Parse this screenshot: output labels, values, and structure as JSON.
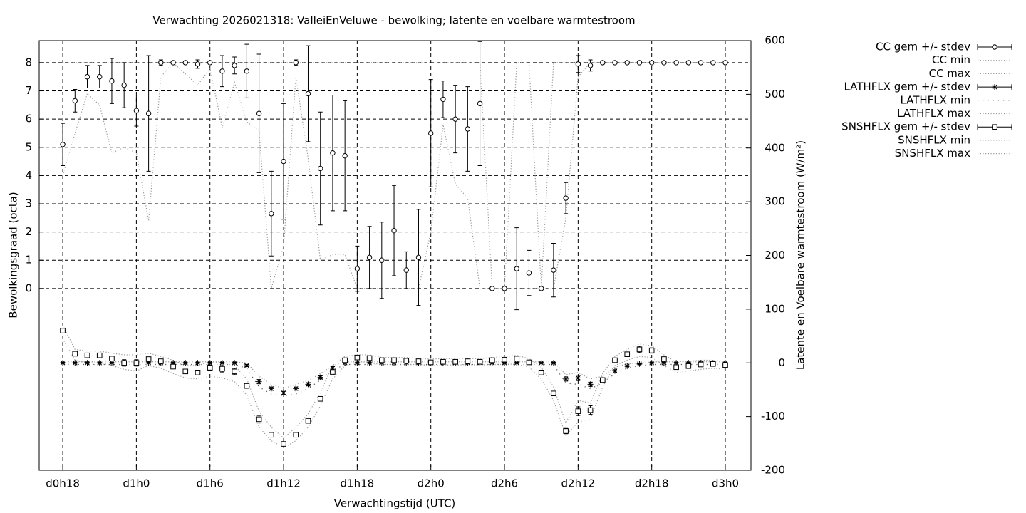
{
  "chart_data": {
    "type": "line",
    "title": "Verwachting 2026021318: ValleiEnVeluwe - bewolking; latente en voelbare warmtestroom",
    "x_label": "Verwachtingstijd (UTC)",
    "y_label": "Bewolkingsgraad (octa)",
    "y2_label": "Latente en Voelbare warmtestroom (W/m²)",
    "x": [
      18,
      19,
      20,
      21,
      22,
      23,
      24,
      25,
      26,
      27,
      28,
      29,
      30,
      31,
      32,
      33,
      34,
      35,
      36,
      37,
      38,
      39,
      40,
      41,
      42,
      43,
      44,
      45,
      46,
      47,
      48,
      49,
      50,
      51,
      52,
      53,
      54,
      55,
      56,
      57,
      58,
      59,
      60,
      61,
      62,
      63,
      64,
      65,
      66,
      67,
      68,
      69,
      70,
      71,
      72
    ],
    "xlim": [
      16.08,
      74.09
    ],
    "xticks": [
      {
        "value": 18,
        "label": "d0h18"
      },
      {
        "value": 24,
        "label": "d1h0"
      },
      {
        "value": 30,
        "label": "d1h6"
      },
      {
        "value": 36,
        "label": "d1h12"
      },
      {
        "value": 42,
        "label": "d1h18"
      },
      {
        "value": 48,
        "label": "d2h0"
      },
      {
        "value": 54,
        "label": "d2h6"
      },
      {
        "value": 60,
        "label": "d2h12"
      },
      {
        "value": 66,
        "label": "d2h18"
      },
      {
        "value": 72,
        "label": "d3h0"
      }
    ],
    "ylim": [
      -6.44,
      8.78
    ],
    "yticks": [
      0,
      1,
      2,
      3,
      4,
      5,
      6,
      7,
      8
    ],
    "y2lim": [
      -200,
      600
    ],
    "y2ticks": [
      -200,
      -100,
      0,
      100,
      200,
      300,
      400,
      500,
      600
    ],
    "grid": true,
    "legend": "outside-right-top",
    "series": [
      {
        "name": "CC gem +/- stdev",
        "color": "#000000",
        "style": "errorbar",
        "marker": "circle",
        "axis": "y",
        "values": [
          5.1,
          6.65,
          7.5,
          7.5,
          7.35,
          7.2,
          6.3,
          6.2,
          8,
          8,
          8,
          7.95,
          8,
          7.7,
          7.9,
          7.7,
          6.2,
          2.65,
          4.5,
          8,
          6.9,
          4.25,
          4.8,
          4.7,
          0.7,
          1.1,
          1.0,
          2.05,
          0.65,
          1.1,
          5.5,
          6.7,
          6.0,
          5.65,
          6.55,
          0,
          0,
          0.7,
          0.55,
          0,
          0.65,
          3.2,
          7.95,
          7.9,
          8,
          8,
          8,
          8,
          8,
          8,
          8,
          8,
          8,
          8,
          8
        ],
        "errors": [
          0.75,
          0.4,
          0.4,
          0.4,
          0.8,
          0.8,
          0.55,
          2.05,
          0.1,
          0,
          0,
          0.15,
          0,
          0.55,
          0.3,
          0.95,
          2.1,
          1.5,
          2.05,
          0.1,
          1.7,
          2.0,
          2.05,
          1.95,
          0.8,
          1.1,
          1.35,
          1.6,
          0.65,
          1.7,
          1.9,
          0.65,
          1.2,
          1.5,
          2.2,
          0,
          0,
          1.45,
          0.8,
          0,
          0.95,
          0.55,
          0.3,
          0.2,
          0,
          0,
          0,
          0,
          0,
          0,
          0,
          0,
          0,
          0,
          0
        ]
      },
      {
        "name": "CC min",
        "color": "#999999",
        "style": "dotted",
        "axis": "y",
        "values": [
          4.0,
          5.5,
          6.9,
          6.5,
          4.8,
          5.0,
          4.8,
          2.4,
          7.5,
          8,
          7.6,
          7.2,
          7.8,
          5.7,
          7.3,
          5.9,
          5.6,
          0,
          1.5,
          7.5,
          4.6,
          1,
          1.2,
          1.2,
          0,
          0,
          0,
          0,
          0,
          0,
          2,
          5.8,
          3.7,
          3.2,
          0,
          0,
          0,
          0,
          0,
          0,
          0,
          2.5,
          7.5,
          8,
          8,
          8,
          8,
          8,
          8,
          8,
          8,
          8,
          8,
          8,
          8
        ]
      },
      {
        "name": "CC max",
        "color": "#999999",
        "style": "dotted",
        "axis": "y",
        "values": [
          8,
          8,
          8,
          8,
          8,
          8,
          8,
          8,
          8,
          8,
          8,
          8,
          8,
          8,
          8,
          8,
          8,
          8,
          8,
          8,
          8,
          8,
          8,
          8,
          8,
          8,
          8,
          8,
          8,
          8,
          8,
          8,
          8,
          8,
          8,
          0,
          0,
          8,
          8,
          0,
          8,
          8,
          8,
          8,
          8,
          8,
          8,
          8,
          8,
          8,
          8,
          8,
          8,
          8,
          8
        ]
      },
      {
        "name": "LATHFLX gem +/- stdev",
        "color": "#000000",
        "style": "errorbar",
        "marker": "star",
        "axis": "y2",
        "values": [
          0,
          0,
          0,
          0,
          0,
          0,
          0,
          0,
          0,
          0,
          0,
          0,
          0,
          0,
          0,
          -5,
          -35,
          -48,
          -56,
          -48,
          -40,
          -27,
          -10,
          0,
          0,
          0,
          0,
          0,
          0,
          0,
          0,
          0,
          0,
          0,
          0,
          0,
          0,
          0,
          0,
          0,
          0,
          -30,
          -28,
          -40,
          -32,
          -15,
          -6,
          -2,
          0,
          0,
          0,
          0,
          0,
          0,
          0
        ],
        "errors": [
          1,
          1,
          1,
          1,
          1,
          1,
          1,
          1,
          1,
          1,
          1,
          1,
          1,
          1,
          1,
          2,
          4,
          3,
          3,
          3,
          3,
          3,
          3,
          1,
          1,
          1,
          1,
          1,
          1,
          1,
          1,
          1,
          1,
          1,
          1,
          1,
          1,
          1,
          1,
          1,
          1,
          4,
          5,
          4,
          3,
          2,
          1,
          1,
          1,
          1,
          1,
          1,
          1,
          1,
          1
        ]
      },
      {
        "name": "LATHFLX min",
        "color": "#555555",
        "style": "sparse",
        "axis": "y2",
        "values": [
          -3,
          -3,
          -3,
          -3,
          -3,
          -3,
          -3,
          -3,
          -3,
          -3,
          -3,
          -3,
          -3,
          -3,
          -3,
          -10,
          -45,
          -58,
          -62,
          -58,
          -48,
          -32,
          -14,
          -3,
          -3,
          -3,
          -3,
          -3,
          -3,
          -3,
          -3,
          -3,
          -3,
          -3,
          -3,
          -3,
          -3,
          -3,
          -3,
          -3,
          -3,
          -38,
          -40,
          -48,
          -38,
          -20,
          -10,
          -5,
          -3,
          -3,
          -3,
          -3,
          -3,
          -3,
          -3
        ]
      },
      {
        "name": "LATHFLX max",
        "color": "#999999",
        "style": "dotted",
        "axis": "y2",
        "values": [
          2,
          2,
          2,
          2,
          2,
          2,
          2,
          2,
          2,
          2,
          2,
          2,
          2,
          2,
          2,
          0,
          -25,
          -40,
          -48,
          -40,
          -33,
          -20,
          -5,
          2,
          2,
          2,
          2,
          2,
          2,
          2,
          2,
          2,
          2,
          2,
          2,
          2,
          2,
          2,
          2,
          2,
          2,
          -22,
          -18,
          -30,
          -25,
          -8,
          -2,
          0,
          2,
          2,
          2,
          2,
          2,
          2,
          2
        ]
      },
      {
        "name": "SNSHFLX gem +/- stdev",
        "color": "#000000",
        "style": "errorbar",
        "marker": "square",
        "axis": "y2",
        "values": [
          60,
          17,
          14,
          14,
          8,
          0,
          0,
          7,
          3,
          -7,
          -16,
          -18,
          -9,
          -11,
          -16,
          -43,
          -105,
          -134,
          -151,
          -134,
          -108,
          -67,
          -17,
          5,
          10,
          9,
          5,
          5,
          4,
          3,
          1,
          2,
          2,
          3,
          2,
          5,
          6,
          8,
          1,
          -18,
          -57,
          -127,
          -90,
          -88,
          -32,
          5,
          16,
          25,
          23,
          7,
          -8,
          -6,
          -3,
          -2,
          -4
        ],
        "errors": [
          3,
          2,
          2,
          2,
          4,
          6,
          6,
          4,
          4,
          3,
          3,
          4,
          5,
          6,
          6,
          4,
          7,
          3,
          2,
          2,
          3,
          2,
          3,
          3,
          2,
          2,
          2,
          2,
          2,
          2,
          2,
          2,
          2,
          2,
          2,
          2,
          3,
          4,
          2,
          2,
          2,
          5,
          8,
          8,
          3,
          2,
          2,
          6,
          5,
          2,
          4,
          4,
          3,
          3,
          3
        ]
      },
      {
        "name": "SNSHFLX min",
        "color": "#999999",
        "style": "dotted",
        "axis": "y2",
        "values": [
          45,
          5,
          0,
          0,
          -5,
          -12,
          -15,
          -5,
          -10,
          -20,
          -28,
          -30,
          -25,
          -28,
          -35,
          -60,
          -120,
          -145,
          -158,
          -145,
          -120,
          -80,
          -30,
          -5,
          0,
          0,
          -3,
          -3,
          -3,
          -3,
          -5,
          -4,
          -4,
          -3,
          -4,
          -3,
          -3,
          -2,
          -8,
          -30,
          -70,
          -135,
          -110,
          -105,
          -45,
          -5,
          5,
          12,
          10,
          -5,
          -18,
          -15,
          -12,
          -10,
          -12
        ]
      },
      {
        "name": "SNSHFLX max",
        "color": "#999999",
        "style": "dotted",
        "axis": "y2",
        "values": [
          70,
          25,
          22,
          22,
          18,
          15,
          15,
          18,
          12,
          5,
          -5,
          -5,
          2,
          0,
          -5,
          -30,
          -90,
          -120,
          -140,
          -120,
          -95,
          -55,
          -5,
          12,
          15,
          15,
          10,
          10,
          10,
          8,
          7,
          8,
          8,
          8,
          8,
          10,
          12,
          14,
          8,
          -8,
          -45,
          -112,
          -70,
          -75,
          -20,
          12,
          25,
          35,
          32,
          15,
          2,
          3,
          5,
          5,
          3
        ]
      }
    ]
  }
}
